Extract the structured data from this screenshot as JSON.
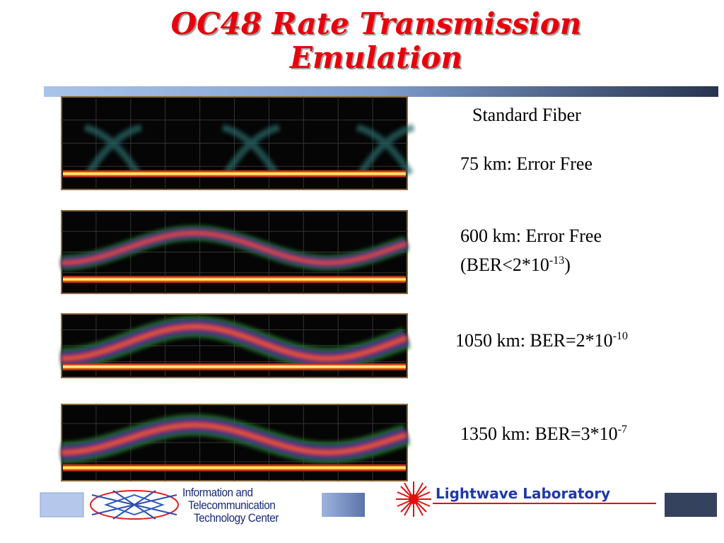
{
  "header": {
    "title_lines": [
      "OC48 Rate Transmission",
      "Emulation"
    ]
  },
  "fiber_label": "Standard Fiber",
  "results": [
    {
      "text": "75 km: Error Free"
    },
    {
      "text": "600 km: Error Free",
      "ber_prefix": "(BER<2*10",
      "ber_exponent": "-13",
      "ber_suffix": ")"
    },
    {
      "text": "1050 km: BER=2*10",
      "exponent": "-10"
    },
    {
      "text": "1350 km: BER=3*10",
      "exponent": "-7"
    }
  ],
  "footer": {
    "center_lines": [
      "Information and",
      "Telecommunication",
      "Technology Center"
    ],
    "lab": "Lightwave Laboratory"
  }
}
